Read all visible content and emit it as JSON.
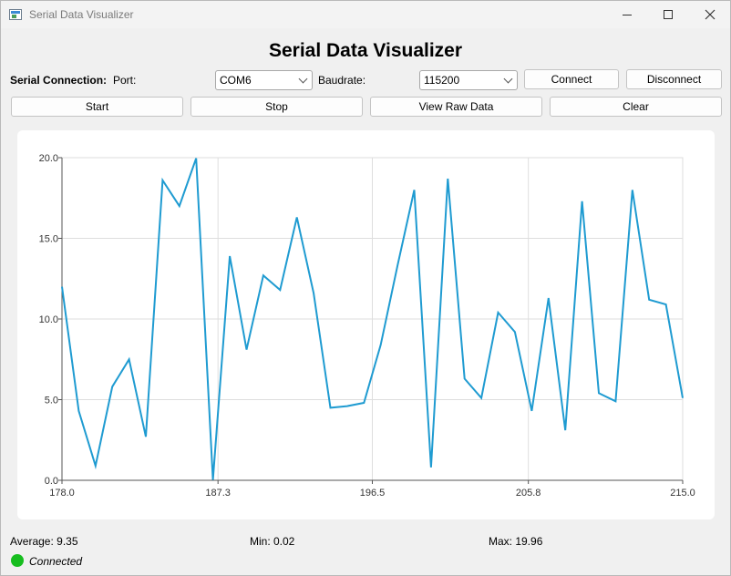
{
  "window": {
    "title": "Serial Data Visualizer"
  },
  "header": {
    "title": "Serial Data Visualizer"
  },
  "connection": {
    "section_label": "Serial Connection:",
    "port_label": "Port:",
    "port_value": "COM6",
    "baud_label": "Baudrate:",
    "baud_value": "115200",
    "connect_label": "Connect",
    "disconnect_label": "Disconnect"
  },
  "controls": {
    "start_label": "Start",
    "stop_label": "Stop",
    "raw_label": "View Raw Data",
    "clear_label": "Clear"
  },
  "chart_data": {
    "type": "line",
    "x": [
      178,
      179,
      180,
      181,
      182,
      183,
      184,
      185,
      186,
      187,
      188,
      189,
      190,
      191,
      192,
      193,
      194,
      195,
      196,
      197,
      198,
      199,
      200,
      201,
      202,
      203,
      204,
      205,
      206,
      207,
      208,
      209,
      210,
      211,
      212,
      213,
      214,
      215
    ],
    "series": [
      {
        "color": "#1f9bd1",
        "values": [
          12.0,
          4.3,
          0.9,
          5.8,
          7.5,
          2.7,
          18.6,
          17.0,
          19.96,
          0.02,
          13.9,
          8.1,
          12.7,
          11.8,
          16.3,
          11.6,
          4.5,
          4.6,
          4.8,
          8.4,
          13.3,
          18.0,
          0.8,
          18.7,
          6.3,
          5.1,
          10.4,
          9.2,
          4.3,
          11.3,
          3.1,
          17.3,
          5.4,
          4.9,
          18.0,
          11.2,
          10.9,
          5.1
        ]
      }
    ],
    "xlim": [
      178.0,
      215.0
    ],
    "ylim": [
      0.0,
      20.0
    ],
    "x_ticks": [
      "178.0",
      "187.3",
      "196.5",
      "205.8",
      "215.0"
    ],
    "y_ticks": [
      "0.0",
      "5.0",
      "10.0",
      "15.0",
      "20.0"
    ],
    "grid": true
  },
  "stats": {
    "average": "Average: 9.35",
    "min": "Min: 0.02",
    "max": "Max: 19.96"
  },
  "status": {
    "text": "Connected",
    "color": "#17bd1f"
  }
}
